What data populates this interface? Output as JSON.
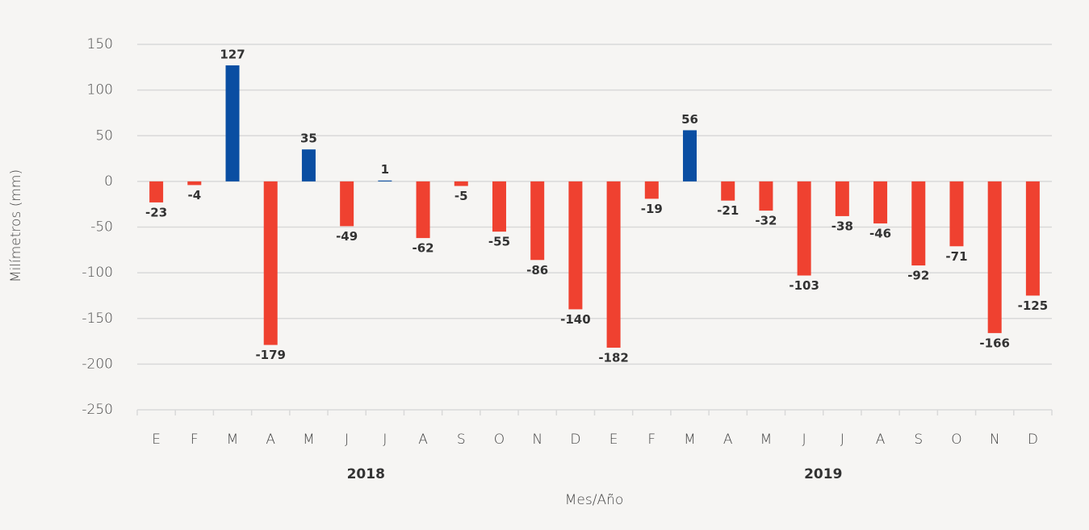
{
  "chart_data": {
    "type": "bar",
    "y_axis_label": "Milímetros (mm)",
    "x_axis_label": "Mes/Año",
    "categories": [
      "E",
      "F",
      "M",
      "A",
      "M",
      "J",
      "J",
      "A",
      "S",
      "O",
      "N",
      "D",
      "E",
      "F",
      "M",
      "A",
      "M",
      "J",
      "J",
      "A",
      "S",
      "O",
      "N",
      "D"
    ],
    "groups": [
      "2018",
      "2019"
    ],
    "values": [
      -23,
      -4,
      127,
      -179,
      35,
      -49,
      1,
      -62,
      -5,
      -55,
      -86,
      -140,
      -182,
      -19,
      56,
      -21,
      -32,
      -103,
      -38,
      -46,
      -92,
      -71,
      -166,
      -125
    ],
    "positive_color": "#0a4ea2",
    "negative_color": "#ef4130",
    "ylim": [
      -250,
      150
    ],
    "yticks": [
      -250,
      -200,
      -150,
      -100,
      -50,
      0,
      50,
      100,
      150
    ],
    "grid": true
  }
}
